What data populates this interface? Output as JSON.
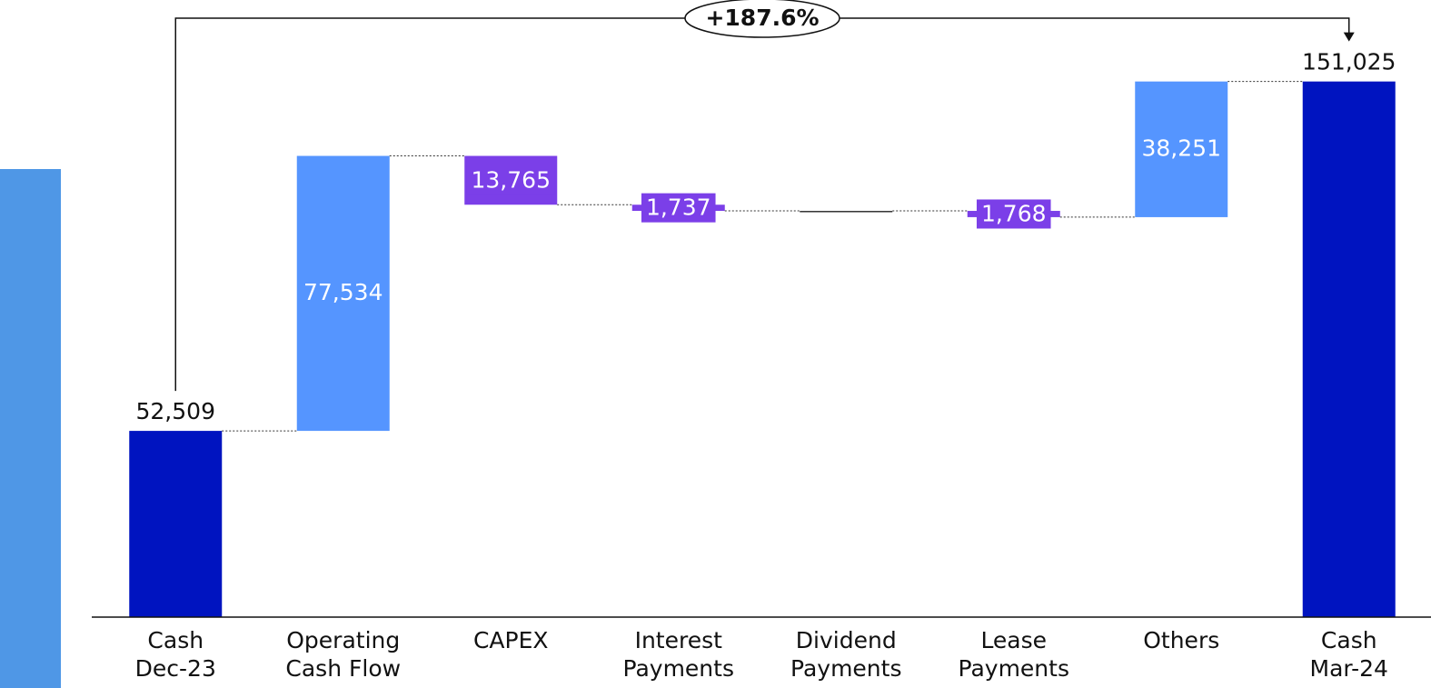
{
  "chart_data": {
    "type": "waterfall",
    "categories": [
      [
        "Cash",
        "Dec-23"
      ],
      [
        "Operating",
        "Cash Flow"
      ],
      [
        "CAPEX"
      ],
      [
        "Interest",
        "Payments"
      ],
      [
        "Dividend",
        "Payments"
      ],
      [
        "Lease",
        "Payments"
      ],
      [
        "Others"
      ],
      [
        "Cash",
        "Mar-24"
      ]
    ],
    "values": [
      52509,
      77534,
      -13765,
      -1737,
      0,
      -1768,
      38251,
      151025
    ],
    "value_labels": [
      "52,509",
      "77,534",
      "13,765",
      "1,737",
      null,
      "1,768",
      "38,251",
      "151,025"
    ],
    "measures": [
      "total",
      "relative",
      "relative",
      "relative",
      "relative",
      "relative",
      "relative",
      "total"
    ],
    "colors": {
      "total": "#0014c0",
      "increase": "#5595ff",
      "decrease": "#7b3fe8"
    },
    "ylim": [
      0,
      174000
    ],
    "annotation": "+187.6%"
  }
}
